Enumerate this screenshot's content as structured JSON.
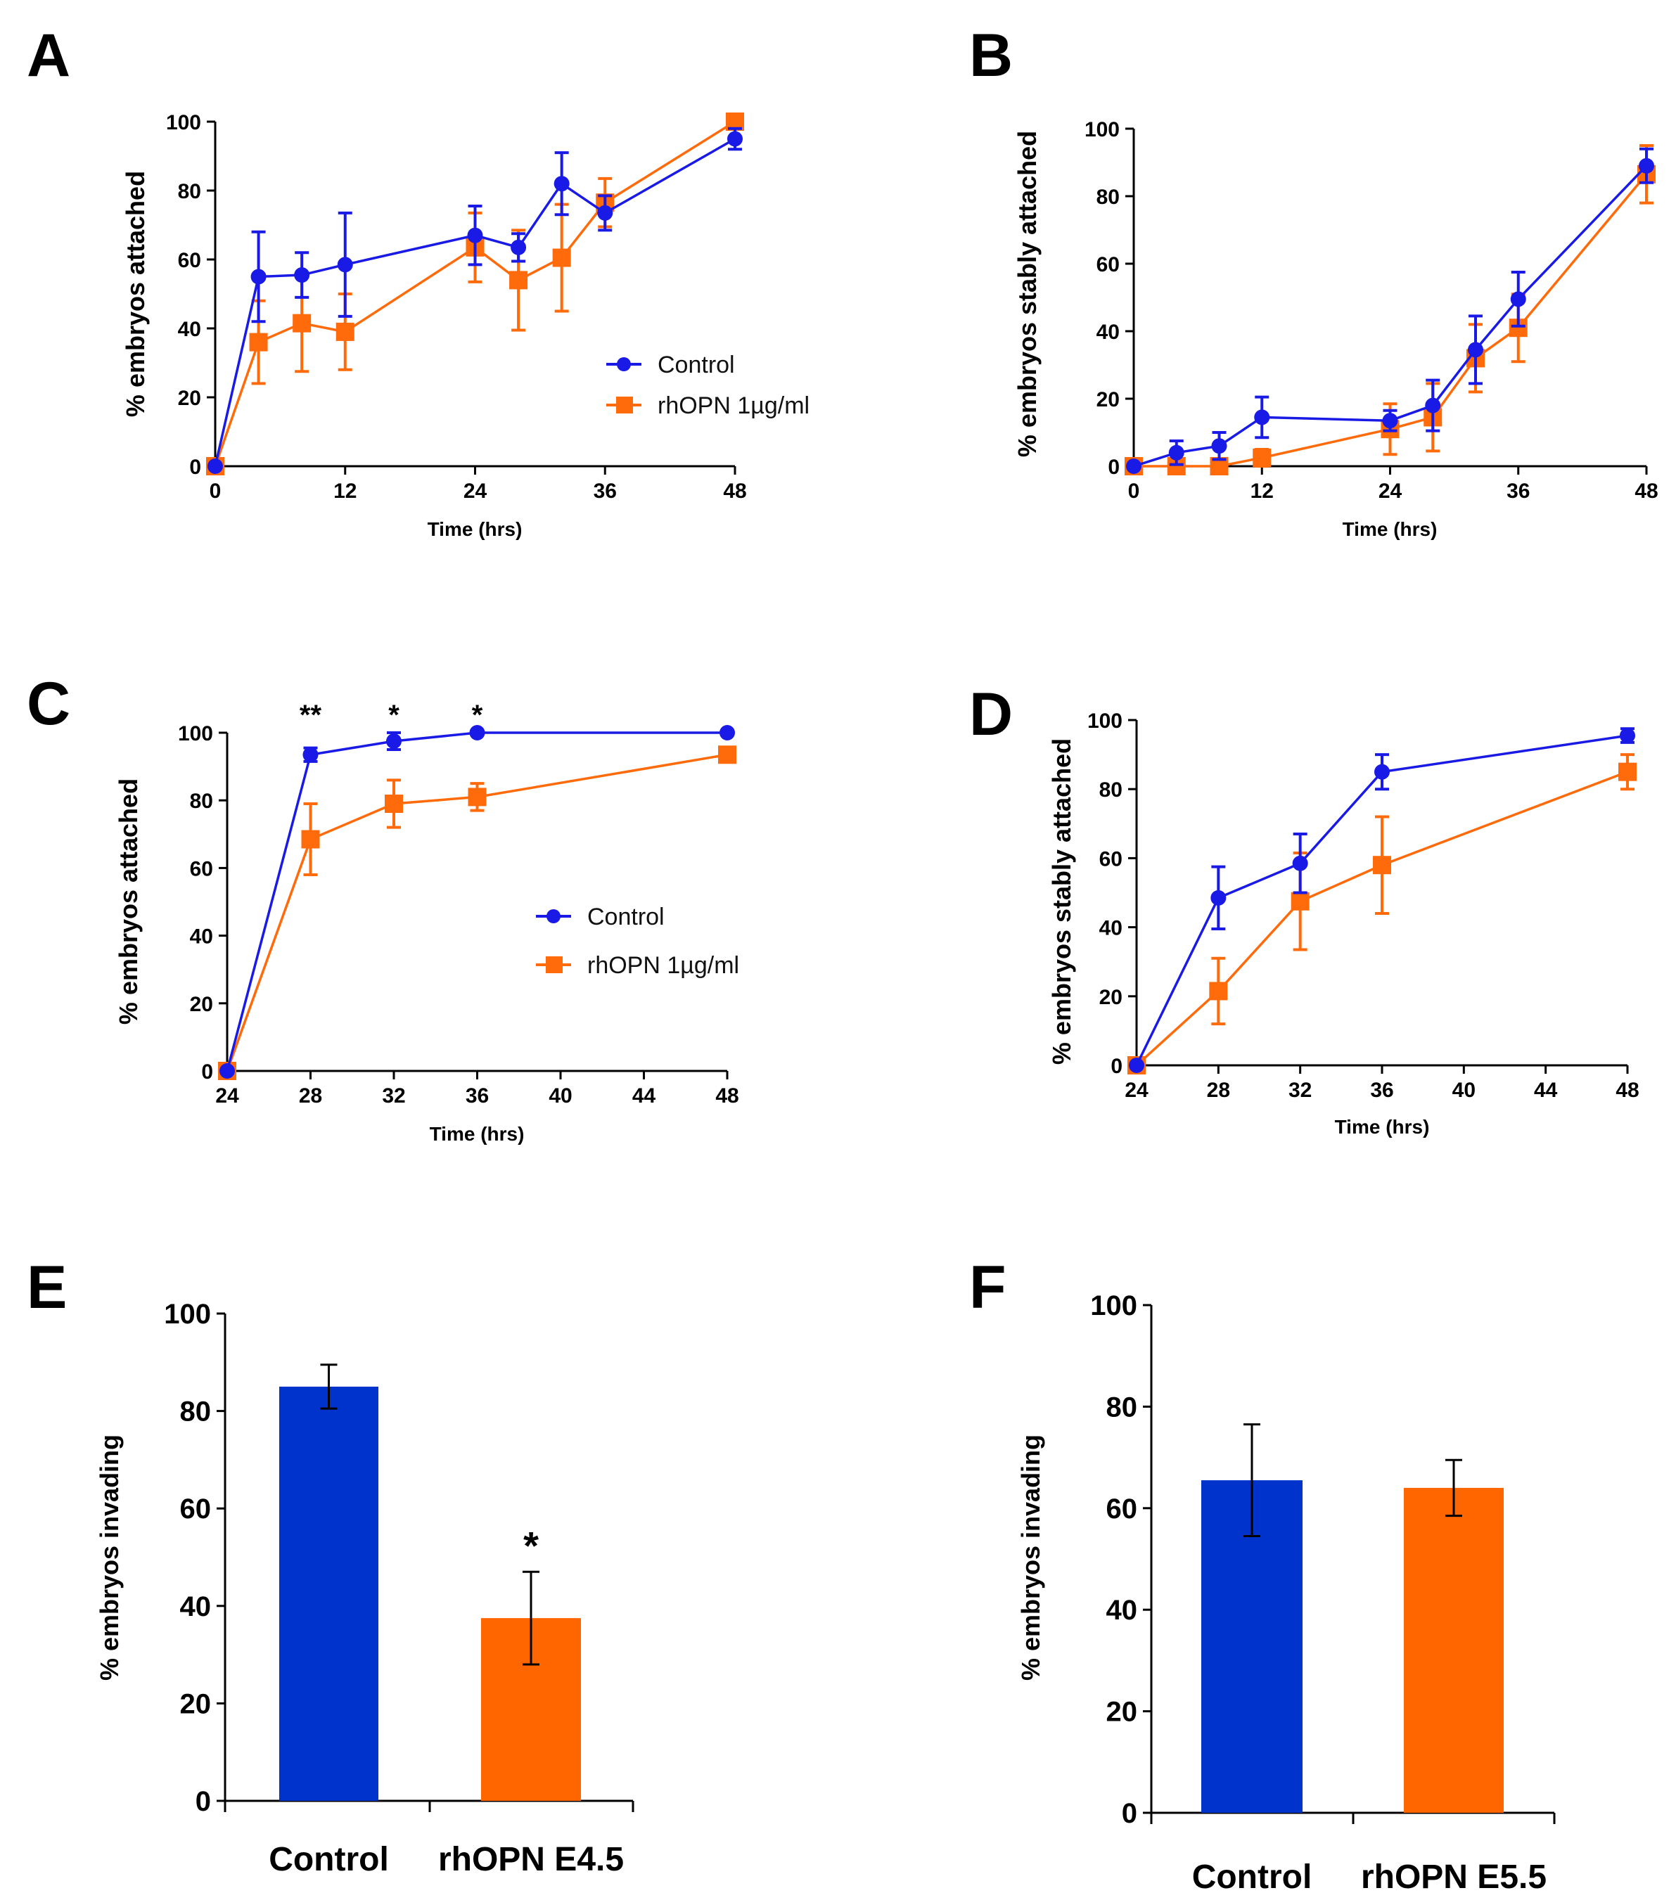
{
  "colors": {
    "control": "#1a1ae6",
    "treatment": "#ff6a0a",
    "bar_control": "#0033cc",
    "bar_treatment": "#ff6600",
    "axis": "#000000"
  },
  "chart_data": [
    {
      "panel": "A",
      "type": "line",
      "title": "",
      "xlabel": "Time (hrs)",
      "ylabel": "% embryos attached",
      "xlim": [
        0,
        48
      ],
      "ylim": [
        0,
        100
      ],
      "xticks": [
        "0",
        "12",
        "24",
        "36",
        "48"
      ],
      "yticks": [
        "0",
        "20",
        "40",
        "60",
        "80",
        "100"
      ],
      "legend": {
        "position": "right",
        "entries": [
          "Control",
          "rhOPN 1µg/ml"
        ]
      },
      "series": [
        {
          "name": "Control",
          "marker": "circle",
          "x": [
            0,
            4,
            8,
            12,
            24,
            28,
            32,
            36,
            48
          ],
          "y": [
            0,
            55,
            55.5,
            58.5,
            67,
            63.5,
            82,
            73.5,
            95
          ],
          "err": [
            0,
            13,
            6.5,
            15,
            8.5,
            4,
            9,
            5,
            3
          ]
        },
        {
          "name": "rhOPN 1µg/ml",
          "marker": "square",
          "x": [
            0,
            4,
            8,
            12,
            24,
            28,
            32,
            36,
            48
          ],
          "y": [
            0,
            36,
            41.5,
            39,
            63.5,
            54,
            60.5,
            76.5,
            100
          ],
          "err": [
            0,
            12,
            14,
            11,
            10,
            14.5,
            15.5,
            7,
            0
          ]
        }
      ],
      "annotations": []
    },
    {
      "panel": "B",
      "type": "line",
      "title": "",
      "xlabel": "Time (hrs)",
      "ylabel": "% embryos stably attached",
      "xlim": [
        0,
        48
      ],
      "ylim": [
        0,
        100
      ],
      "xticks": [
        "0",
        "12",
        "24",
        "36",
        "48"
      ],
      "yticks": [
        "0",
        "20",
        "40",
        "60",
        "80",
        "100"
      ],
      "legend": null,
      "series": [
        {
          "name": "Control",
          "marker": "circle",
          "x": [
            0,
            4,
            8,
            12,
            24,
            28,
            32,
            36,
            48
          ],
          "y": [
            0,
            4,
            6,
            14.5,
            13.5,
            18,
            34.5,
            49.5,
            89
          ],
          "err": [
            0,
            3.5,
            4,
            6,
            3,
            7.5,
            10,
            8,
            5
          ]
        },
        {
          "name": "rhOPN 1µg/ml",
          "marker": "square",
          "x": [
            0,
            4,
            8,
            12,
            24,
            28,
            32,
            36,
            48
          ],
          "y": [
            0,
            0,
            0,
            2.5,
            11,
            14.5,
            32,
            41,
            86.5
          ],
          "err": [
            0,
            0,
            0,
            2.5,
            7.5,
            10,
            10,
            10,
            8.5
          ]
        }
      ],
      "annotations": []
    },
    {
      "panel": "C",
      "type": "line",
      "title": "",
      "xlabel": "Time (hrs)",
      "ylabel": "% embryos attached",
      "xlim": [
        24,
        48
      ],
      "ylim": [
        0,
        100
      ],
      "xticks": [
        "24",
        "28",
        "32",
        "36",
        "40",
        "44",
        "48"
      ],
      "yticks": [
        "0",
        "20",
        "40",
        "60",
        "80",
        "100"
      ],
      "legend": {
        "position": "center-right",
        "entries": [
          "Control",
          "rhOPN 1µg/ml"
        ]
      },
      "series": [
        {
          "name": "Control",
          "marker": "circle",
          "x": [
            24,
            28,
            32,
            36,
            48
          ],
          "y": [
            0,
            93.5,
            97.5,
            100,
            100
          ],
          "err": [
            0,
            2,
            2.5,
            0,
            0
          ]
        },
        {
          "name": "rhOPN 1µg/ml",
          "marker": "square",
          "x": [
            24,
            28,
            32,
            36,
            48
          ],
          "y": [
            0,
            68.5,
            79,
            81,
            93.5
          ],
          "err": [
            0,
            10.5,
            7,
            4,
            2
          ]
        }
      ],
      "annotations": [
        {
          "x": 28,
          "text": "**"
        },
        {
          "x": 32,
          "text": "*"
        },
        {
          "x": 36,
          "text": "*"
        }
      ]
    },
    {
      "panel": "D",
      "type": "line",
      "title": "",
      "xlabel": "Time (hrs)",
      "ylabel": "% embryos stably attached",
      "xlim": [
        24,
        48
      ],
      "ylim": [
        0,
        100
      ],
      "xticks": [
        "24",
        "28",
        "32",
        "36",
        "40",
        "44",
        "48"
      ],
      "yticks": [
        "0",
        "20",
        "40",
        "60",
        "80",
        "100"
      ],
      "legend": null,
      "series": [
        {
          "name": "Control",
          "marker": "circle",
          "x": [
            24,
            28,
            32,
            36,
            48
          ],
          "y": [
            0,
            48.5,
            58.5,
            85,
            95.5
          ],
          "err": [
            0,
            9,
            8.5,
            5,
            2
          ]
        },
        {
          "name": "rhOPN 1µg/ml",
          "marker": "square",
          "x": [
            24,
            28,
            32,
            36,
            48
          ],
          "y": [
            0,
            21.5,
            47.5,
            58,
            85
          ],
          "err": [
            0,
            9.5,
            14,
            14,
            5
          ]
        }
      ],
      "annotations": []
    },
    {
      "panel": "E",
      "type": "bar",
      "title": "",
      "xlabel": "",
      "ylabel": "% embryos invading",
      "ylim": [
        0,
        100
      ],
      "yticks": [
        "0",
        "20",
        "40",
        "60",
        "80",
        "100"
      ],
      "categories": [
        "Control",
        "rhOPN E4.5"
      ],
      "values": [
        85,
        37.5
      ],
      "err": [
        4.5,
        9.5
      ],
      "annotations": [
        {
          "category": "rhOPN E4.5",
          "text": "*"
        }
      ]
    },
    {
      "panel": "F",
      "type": "bar",
      "title": "",
      "xlabel": "",
      "ylabel": "% embryos invading",
      "ylim": [
        0,
        100
      ],
      "yticks": [
        "0",
        "20",
        "40",
        "60",
        "80",
        "100"
      ],
      "categories": [
        "Control",
        "rhOPN E5.5"
      ],
      "values": [
        65.5,
        64
      ],
      "err": [
        11,
        5.5
      ],
      "annotations": []
    }
  ]
}
